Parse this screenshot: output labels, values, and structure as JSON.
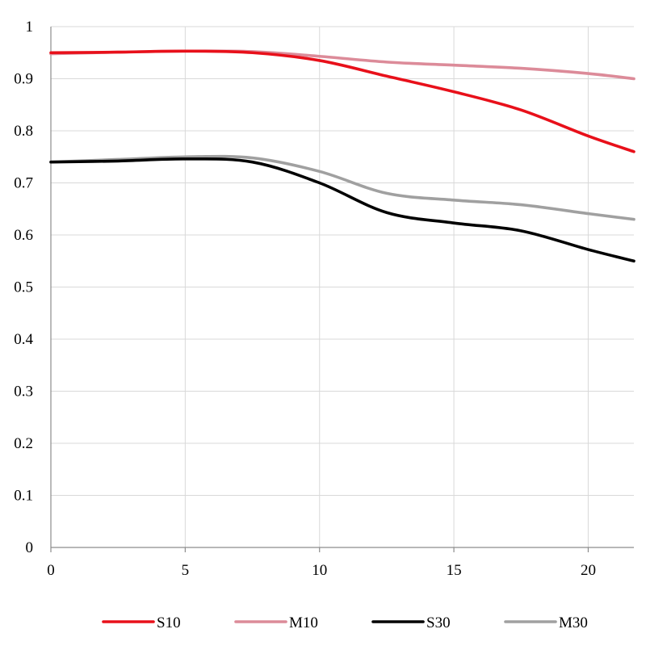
{
  "chart_data": {
    "type": "line",
    "title": "",
    "xlabel": "",
    "ylabel": "",
    "xlim": [
      0,
      21.7
    ],
    "ylim": [
      0,
      1
    ],
    "x_ticks": [
      0,
      5,
      10,
      15,
      20
    ],
    "x_tick_labels": [
      "0",
      "5",
      "10",
      "15",
      "20"
    ],
    "y_ticks": [
      0,
      0.1,
      0.2,
      0.3,
      0.4,
      0.5,
      0.6,
      0.7,
      0.8,
      0.9,
      1
    ],
    "y_tick_labels": [
      "0",
      "0.1",
      "0.2",
      "0.3",
      "0.4",
      "0.5",
      "0.6",
      "0.7",
      "0.8",
      "0.9",
      "1"
    ],
    "grid": true,
    "legend_position": "bottom",
    "series": [
      {
        "name": "S10",
        "color": "#e8101a",
        "x": [
          0,
          2.5,
          5,
          7.5,
          10,
          12.5,
          15,
          17.5,
          20,
          21.7
        ],
        "values": [
          0.95,
          0.951,
          0.953,
          0.95,
          0.935,
          0.905,
          0.875,
          0.84,
          0.79,
          0.76
        ]
      },
      {
        "name": "M10",
        "color": "#dc8b99",
        "x": [
          0,
          2.5,
          5,
          7.5,
          10,
          12.5,
          15,
          17.5,
          20,
          21.7
        ],
        "values": [
          0.948,
          0.951,
          0.953,
          0.952,
          0.943,
          0.932,
          0.926,
          0.92,
          0.91,
          0.9
        ]
      },
      {
        "name": "S30",
        "color": "#000000",
        "x": [
          0,
          2.5,
          5,
          7.5,
          10,
          12.5,
          15,
          17.5,
          20,
          21.7
        ],
        "values": [
          0.74,
          0.742,
          0.746,
          0.74,
          0.7,
          0.643,
          0.623,
          0.608,
          0.572,
          0.55
        ]
      },
      {
        "name": "M30",
        "color": "#a0a0a0",
        "x": [
          0,
          2.5,
          5,
          7.5,
          10,
          12.5,
          15,
          17.5,
          20,
          21.7
        ],
        "values": [
          0.74,
          0.745,
          0.75,
          0.748,
          0.722,
          0.68,
          0.667,
          0.658,
          0.641,
          0.63
        ]
      }
    ]
  }
}
